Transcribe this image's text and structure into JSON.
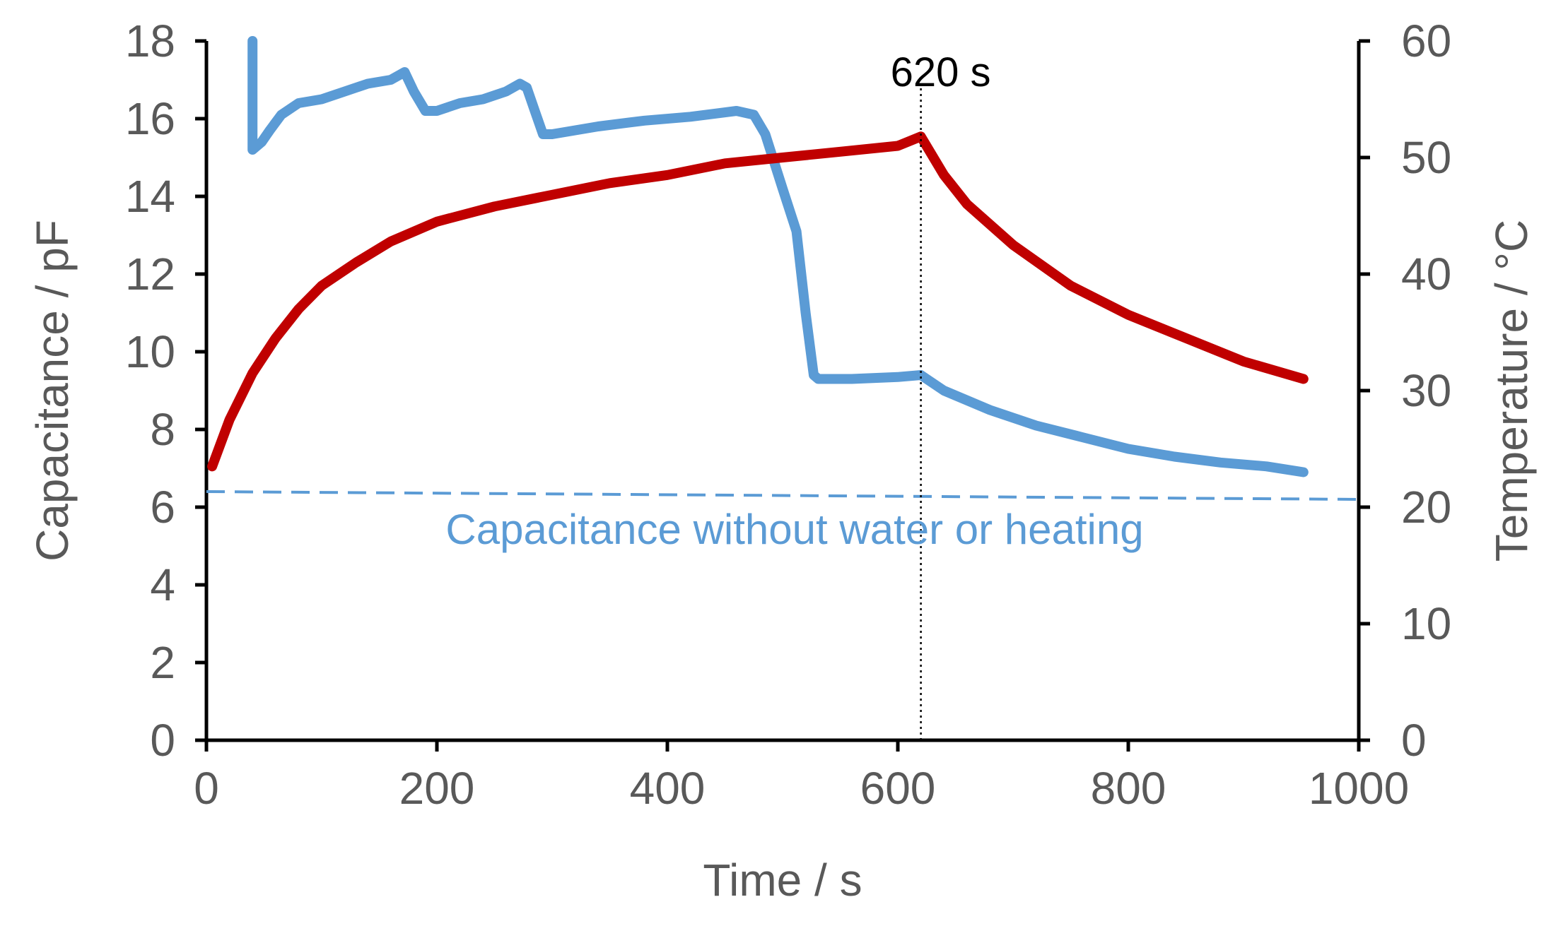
{
  "chart_data": {
    "type": "line",
    "xlabel": "Time / s",
    "ylabel_left": "Capacitance / pF",
    "ylabel_right": "Temperature / °C",
    "xlim": [
      0,
      1000
    ],
    "ylim_left": [
      0,
      18
    ],
    "ylim_right": [
      0,
      60
    ],
    "x_ticks": [
      0,
      200,
      400,
      600,
      800,
      1000
    ],
    "y_left_ticks": [
      0,
      2,
      4,
      6,
      8,
      10,
      12,
      14,
      16,
      18
    ],
    "y_right_ticks": [
      0,
      10,
      20,
      30,
      40,
      50,
      60
    ],
    "x_tick_labels": [
      "0",
      "200",
      "400",
      "600",
      "800",
      "1000"
    ],
    "y_left_tick_labels": [
      "0",
      "2",
      "4",
      "6",
      "8",
      "10",
      "12",
      "14",
      "16",
      "18"
    ],
    "y_right_tick_labels": [
      "0",
      "10",
      "20",
      "30",
      "40",
      "50",
      "60"
    ],
    "grid": false,
    "legend": "none",
    "series": [
      {
        "axis": "left",
        "color": "#5b9bd5",
        "points": [
          [
            40,
            18
          ],
          [
            40,
            15.2
          ],
          [
            48,
            15.4
          ],
          [
            55,
            15.7
          ],
          [
            65,
            16.1
          ],
          [
            80,
            16.4
          ],
          [
            100,
            16.5
          ],
          [
            120,
            16.7
          ],
          [
            140,
            16.9
          ],
          [
            160,
            17.0
          ],
          [
            172,
            17.2
          ],
          [
            180,
            16.7
          ],
          [
            190,
            16.2
          ],
          [
            200,
            16.2
          ],
          [
            220,
            16.4
          ],
          [
            240,
            16.5
          ],
          [
            260,
            16.7
          ],
          [
            272,
            16.9
          ],
          [
            278,
            16.8
          ],
          [
            285,
            16.2
          ],
          [
            292,
            15.6
          ],
          [
            300,
            15.6
          ],
          [
            340,
            15.8
          ],
          [
            380,
            15.95
          ],
          [
            420,
            16.05
          ],
          [
            460,
            16.2
          ],
          [
            475,
            16.1
          ],
          [
            485,
            15.6
          ],
          [
            500,
            14.2
          ],
          [
            512,
            13.1
          ],
          [
            520,
            11.0
          ],
          [
            527,
            9.4
          ],
          [
            531,
            9.3
          ],
          [
            560,
            9.3
          ],
          [
            600,
            9.35
          ],
          [
            620,
            9.4
          ],
          [
            640,
            9.0
          ],
          [
            680,
            8.5
          ],
          [
            720,
            8.1
          ],
          [
            760,
            7.8
          ],
          [
            800,
            7.5
          ],
          [
            840,
            7.3
          ],
          [
            880,
            7.15
          ],
          [
            920,
            7.05
          ],
          [
            952,
            6.9
          ]
        ]
      },
      {
        "axis": "right",
        "color": "#c00000",
        "points": [
          [
            5,
            23.5
          ],
          [
            20,
            27.5
          ],
          [
            40,
            31.5
          ],
          [
            60,
            34.5
          ],
          [
            80,
            37
          ],
          [
            100,
            39
          ],
          [
            130,
            41
          ],
          [
            160,
            42.8
          ],
          [
            200,
            44.5
          ],
          [
            250,
            45.8
          ],
          [
            300,
            46.8
          ],
          [
            350,
            47.8
          ],
          [
            400,
            48.5
          ],
          [
            450,
            49.5
          ],
          [
            500,
            50.0
          ],
          [
            550,
            50.5
          ],
          [
            600,
            51.0
          ],
          [
            620,
            51.8
          ],
          [
            640,
            48.5
          ],
          [
            660,
            46.0
          ],
          [
            700,
            42.5
          ],
          [
            750,
            39.0
          ],
          [
            800,
            36.5
          ],
          [
            850,
            34.5
          ],
          [
            900,
            32.5
          ],
          [
            952,
            31.0
          ]
        ]
      },
      {
        "axis": "left",
        "color": "#5b9bd5",
        "line_style": "dashed",
        "points": [
          [
            0,
            6.4
          ],
          [
            1000,
            6.2
          ]
        ]
      }
    ],
    "annotations": [
      {
        "text": "620 s",
        "x": 620,
        "type": "vertical-line"
      },
      {
        "text": "Capacitance without water or heating",
        "type": "text"
      }
    ]
  }
}
